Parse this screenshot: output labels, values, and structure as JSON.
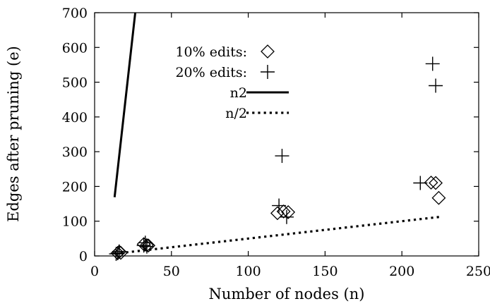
{
  "chart_data": {
    "type": "scatter",
    "title": "",
    "xlabel": "Number of nodes (n)",
    "ylabel": "Edges after pruning (e)",
    "xlim": [
      0,
      250
    ],
    "ylim": [
      0,
      700
    ],
    "xticks": [
      0,
      50,
      100,
      150,
      200,
      250
    ],
    "yticks": [
      0,
      100,
      200,
      300,
      400,
      500,
      600,
      700
    ],
    "grid": false,
    "legend_position": "top-center",
    "series": [
      {
        "name": "10% edits:",
        "kind": "points",
        "marker": "diamond",
        "points": [
          [
            15,
            8
          ],
          [
            16,
            12
          ],
          [
            17,
            9
          ],
          [
            32,
            34
          ],
          [
            34,
            31
          ],
          [
            35,
            30
          ],
          [
            119,
            123
          ],
          [
            123,
            128
          ],
          [
            126,
            126
          ],
          [
            219,
            211
          ],
          [
            222,
            210
          ],
          [
            224,
            167
          ]
        ]
      },
      {
        "name": "20% edits:",
        "kind": "points",
        "marker": "plus",
        "points": [
          [
            14,
            6
          ],
          [
            15,
            8
          ],
          [
            16,
            13
          ],
          [
            32,
            30
          ],
          [
            33,
            38
          ],
          [
            34,
            27
          ],
          [
            120,
            145
          ],
          [
            122,
            288
          ],
          [
            125,
            112
          ],
          [
            212,
            210
          ],
          [
            220,
            553
          ],
          [
            222,
            490
          ]
        ]
      },
      {
        "name": "n2",
        "kind": "line",
        "style": "solid",
        "points": [
          [
            13,
            169
          ],
          [
            26.5,
            702
          ]
        ]
      },
      {
        "name": "n/2",
        "kind": "line",
        "style": "dotted",
        "points": [
          [
            13,
            6.5
          ],
          [
            226,
            113
          ]
        ]
      }
    ]
  }
}
